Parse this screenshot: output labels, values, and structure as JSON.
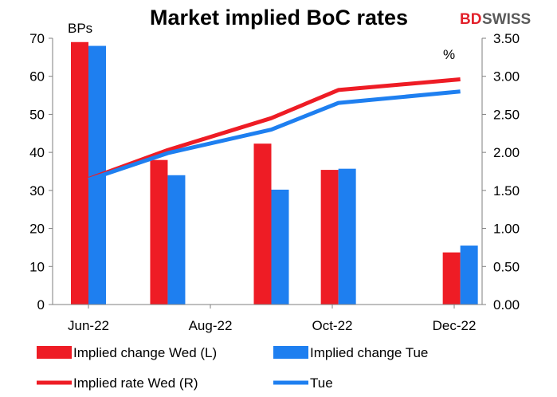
{
  "chart_data": {
    "type": "bar",
    "title": "Market implied BoC rates",
    "brand": {
      "part1": "BD",
      "part2": "SWISS"
    },
    "y_left": {
      "label": "BPs",
      "min": 0,
      "max": 70,
      "ticks": [
        "0",
        "10",
        "20",
        "30",
        "40",
        "50",
        "60",
        "70"
      ]
    },
    "y_right": {
      "label": "%",
      "min": 0,
      "max": 3.5,
      "ticks": [
        "0.00",
        "0.50",
        "1.00",
        "1.50",
        "2.00",
        "2.50",
        "3.00",
        "3.50"
      ]
    },
    "x_ticks": [
      "Jun-22",
      "Aug-22",
      "Oct-22",
      "Dec-22"
    ],
    "bar_series": [
      {
        "name": "Implied change Wed (L)",
        "color": "#ee1c25",
        "points": [
          {
            "x": 0,
            "value": 69
          },
          {
            "x": 1.3,
            "value": 38
          },
          {
            "x": 3.0,
            "value": 42.3
          },
          {
            "x": 4.1,
            "value": 35.4
          },
          {
            "x": 6.1,
            "value": 13.7
          }
        ]
      },
      {
        "name": "Implied change Tue",
        "color": "#1e7ff0",
        "points": [
          {
            "x": 0,
            "value": 68
          },
          {
            "x": 1.3,
            "value": 34
          },
          {
            "x": 3.0,
            "value": 30.2
          },
          {
            "x": 4.1,
            "value": 35.7
          },
          {
            "x": 6.1,
            "value": 15.5
          }
        ]
      }
    ],
    "line_series": [
      {
        "name": "Implied rate Wed (R)",
        "color": "#ee1c25",
        "points": [
          {
            "x": 0,
            "value": 1.65
          },
          {
            "x": 1.3,
            "value": 2.03
          },
          {
            "x": 3.0,
            "value": 2.45
          },
          {
            "x": 4.1,
            "value": 2.82
          },
          {
            "x": 6.1,
            "value": 2.96
          }
        ]
      },
      {
        "name": "Tue",
        "color": "#1e7ff0",
        "points": [
          {
            "x": 0,
            "value": 1.64
          },
          {
            "x": 1.3,
            "value": 1.99
          },
          {
            "x": 3.0,
            "value": 2.3
          },
          {
            "x": 4.1,
            "value": 2.65
          },
          {
            "x": 6.1,
            "value": 2.8
          }
        ]
      }
    ],
    "legend_position": "bottom",
    "grid": false
  }
}
